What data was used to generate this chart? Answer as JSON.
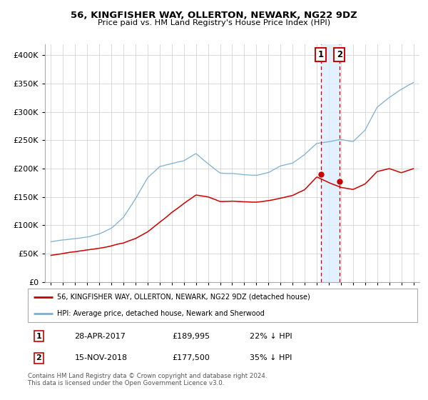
{
  "title": "56, KINGFISHER WAY, OLLERTON, NEWARK, NG22 9DZ",
  "subtitle": "Price paid vs. HM Land Registry's House Price Index (HPI)",
  "legend_line1": "56, KINGFISHER WAY, OLLERTON, NEWARK, NG22 9DZ (detached house)",
  "legend_line2": "HPI: Average price, detached house, Newark and Sherwood",
  "annotation1_date": "28-APR-2017",
  "annotation1_price": "£189,995",
  "annotation1_hpi": "22% ↓ HPI",
  "annotation2_date": "15-NOV-2018",
  "annotation2_price": "£177,500",
  "annotation2_hpi": "35% ↓ HPI",
  "footer": "Contains HM Land Registry data © Crown copyright and database right 2024.\nThis data is licensed under the Open Government Licence v3.0.",
  "red_color": "#cc0000",
  "blue_color": "#7aafd4",
  "highlight_blue": "#ddeeff",
  "marker_date1": 2017.33,
  "marker_price1": 189995,
  "marker_date2": 2018.87,
  "marker_price2": 177500,
  "vline1_x": 2017.33,
  "vline2_x": 2018.87,
  "ylim": [
    0,
    420000
  ],
  "xlim": [
    1994.5,
    2025.5
  ],
  "yticks": [
    0,
    50000,
    100000,
    150000,
    200000,
    250000,
    300000,
    350000,
    400000
  ],
  "ytick_labels": [
    "£0",
    "£50K",
    "£100K",
    "£150K",
    "£200K",
    "£250K",
    "£300K",
    "£350K",
    "£400K"
  ],
  "xticks": [
    1995,
    1996,
    1997,
    1998,
    1999,
    2000,
    2001,
    2002,
    2003,
    2004,
    2005,
    2006,
    2007,
    2008,
    2009,
    2010,
    2011,
    2012,
    2013,
    2014,
    2015,
    2016,
    2017,
    2018,
    2019,
    2020,
    2021,
    2022,
    2023,
    2024,
    2025
  ]
}
